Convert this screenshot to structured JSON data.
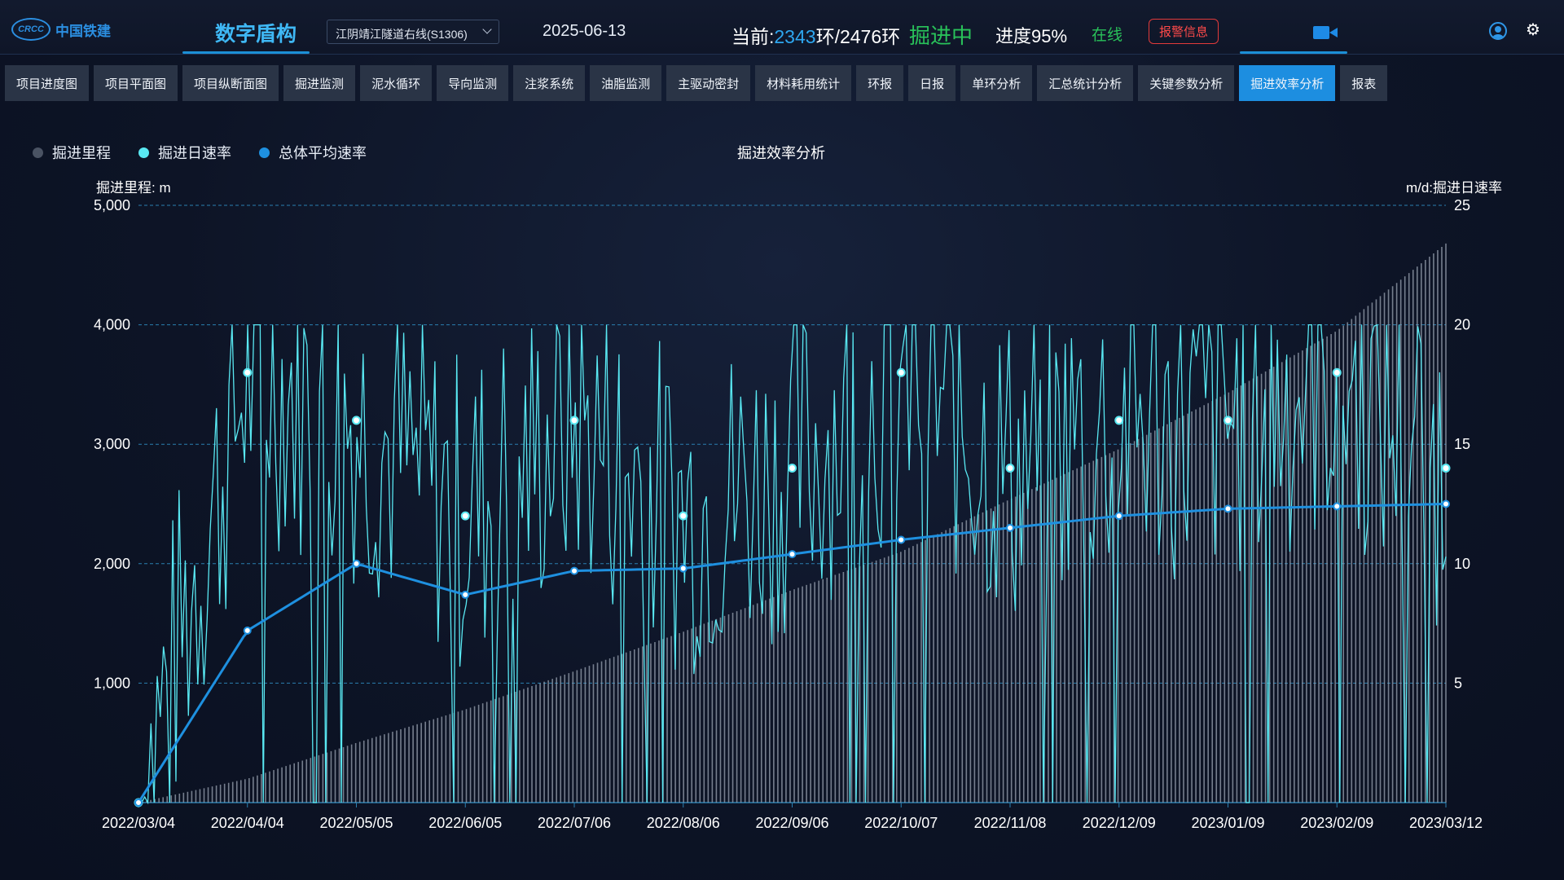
{
  "header": {
    "logo_text": "中国铁建",
    "logo_mark": "CRCC",
    "app_title": "数字盾构",
    "project_select": "江阴靖江隧道右线(S1306)",
    "date": "2025-06-13",
    "ring_prefix": "当前:",
    "ring_current": "2343",
    "ring_rest": "环/2476环",
    "status": "掘进中",
    "progress": "进度95%",
    "online": "在线",
    "alarm_label": "报警信息",
    "icons": [
      "video-camera-icon",
      "user-icon",
      "gear-icon"
    ]
  },
  "nav": {
    "items": [
      "项目进度图",
      "项目平面图",
      "项目纵断面图",
      "掘进监测",
      "泥水循环",
      "导向监测",
      "注浆系统",
      "油脂监测",
      "主驱动密封",
      "材料耗用统计",
      "环报",
      "日报",
      "单环分析",
      "汇总统计分析",
      "关键参数分析",
      "掘进效率分析",
      "报表"
    ],
    "active": "掘进效率分析"
  },
  "legend": [
    {
      "label": "掘进里程",
      "color": "#4a5363"
    },
    {
      "label": "掘进日速率",
      "color": "#59e8f2"
    },
    {
      "label": "总体平均速率",
      "color": "#1e90e0"
    }
  ],
  "chart_data": {
    "type": "bar+line",
    "title": "掘进效率分析",
    "ylabel_left": "掘进里程: m",
    "ylabel_right": "m/d:掘进日速率",
    "ylim_left": [
      0,
      5000
    ],
    "ylim_right": [
      0,
      25
    ],
    "yticks_left": [
      "5,000",
      "4,000",
      "3,000",
      "2,000",
      "1,000"
    ],
    "yticks_right": [
      "25",
      "20",
      "15",
      "10",
      "5"
    ],
    "x_tick_labels": [
      "2022/03/04",
      "2022/04/04",
      "2022/05/05",
      "2022/06/05",
      "2022/07/06",
      "2022/08/06",
      "2022/09/06",
      "2022/10/07",
      "2022/11/08",
      "2022/12/09",
      "2023/01/09",
      "2023/02/09",
      "2023/03/12"
    ],
    "series": [
      {
        "name": "掘进里程",
        "axis": "left",
        "type": "bar",
        "values_at_ticks": [
          0,
          200,
          500,
          780,
          1100,
          1430,
          1780,
          2100,
          2540,
          2960,
          3430,
          3950,
          4680
        ]
      },
      {
        "name": "掘进日速率",
        "axis": "right",
        "type": "line",
        "values_at_ticks": [
          0,
          18,
          16,
          12,
          16,
          12,
          14,
          18,
          14,
          16,
          16,
          18,
          14
        ]
      },
      {
        "name": "总体平均速率",
        "axis": "right",
        "type": "line",
        "values_at_ticks": [
          0,
          7.2,
          10,
          8.7,
          9.7,
          9.8,
          10.4,
          11,
          11.5,
          12,
          12.3,
          12.4,
          12.5
        ]
      }
    ],
    "grid": true,
    "legend_position": "top-left"
  }
}
